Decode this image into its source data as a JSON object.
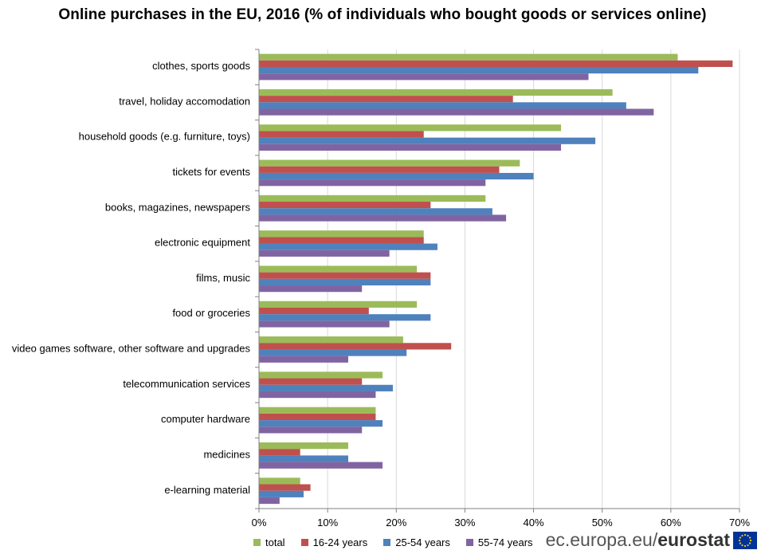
{
  "title": "Online purchases in the EU, 2016 (% of individuals who bought goods or services online)",
  "brand": {
    "site": "ec.europa.eu/",
    "name": "eurostat"
  },
  "chart_data": {
    "type": "bar",
    "orientation": "horizontal",
    "title": "Online purchases in the EU, 2016 (% of individuals who bought goods or services online)",
    "xlabel": "",
    "ylabel": "",
    "xlim": [
      0,
      70
    ],
    "xticks": [
      "0%",
      "10%",
      "20%",
      "30%",
      "40%",
      "50%",
      "60%",
      "70%"
    ],
    "grid": "vertical",
    "legend": "bottom",
    "categories": [
      "clothes, sports goods",
      "travel, holiday accomodation",
      "household goods (e.g. furniture, toys)",
      "tickets for events",
      "books, magazines, newspapers",
      "electronic equipment",
      "films, music",
      "food or groceries",
      "video games software, other software and upgrades",
      "telecommunication services",
      "computer hardware",
      "medicines",
      "e-learning material"
    ],
    "series": [
      {
        "name": "total",
        "color": "#9BBB59",
        "values": [
          61,
          51.5,
          44,
          38,
          33,
          24,
          23,
          23,
          21,
          18,
          17,
          13,
          6
        ]
      },
      {
        "name": "16-24 years",
        "color": "#C0504D",
        "values": [
          69,
          37,
          24,
          35,
          25,
          24,
          25,
          16,
          28,
          15,
          17,
          6,
          7.5
        ]
      },
      {
        "name": "25-54 years",
        "color": "#4F81BD",
        "values": [
          64,
          53.5,
          49,
          40,
          34,
          26,
          25,
          25,
          21.5,
          19.5,
          18,
          13,
          6.5
        ]
      },
      {
        "name": "55-74 years",
        "color": "#8064A2",
        "values": [
          48,
          57.5,
          44,
          33,
          36,
          19,
          15,
          19,
          13,
          17,
          15,
          18,
          3
        ]
      }
    ]
  }
}
